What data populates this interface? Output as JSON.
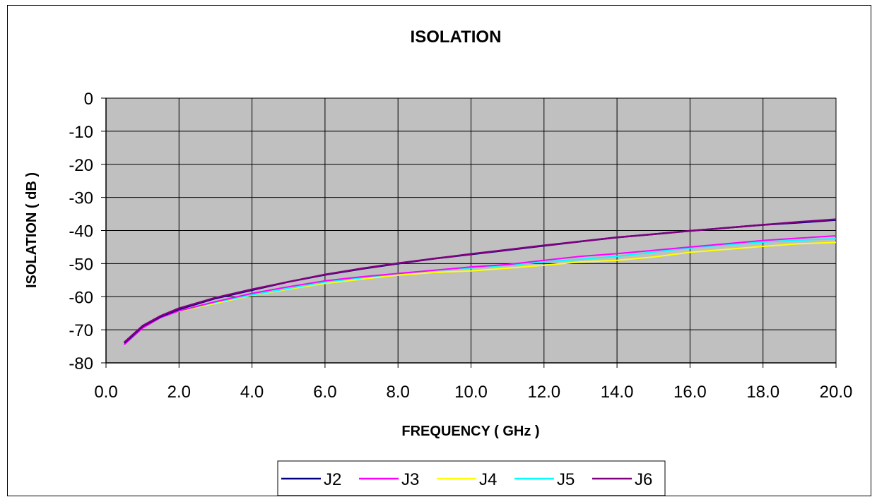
{
  "chart_data": {
    "type": "line",
    "title": "ISOLATION",
    "xlabel": "FREQUENCY ( GHz )",
    "ylabel": "ISOLATION ( dB )",
    "xlim": [
      0.0,
      20.0
    ],
    "ylim": [
      -80,
      0
    ],
    "x_ticks": [
      "0.0",
      "2.0",
      "4.0",
      "6.0",
      "8.0",
      "10.0",
      "12.0",
      "14.0",
      "16.0",
      "18.0",
      "20.0"
    ],
    "y_ticks": [
      "0",
      "-10",
      "-20",
      "-30",
      "-40",
      "-50",
      "-60",
      "-70",
      "-80"
    ],
    "grid": true,
    "plot_background": "#c0c0c0",
    "legend_position": "bottom",
    "x": [
      0.5,
      1.0,
      1.5,
      2.0,
      3.0,
      4.0,
      5.0,
      6.0,
      7.0,
      8.0,
      9.0,
      10.0,
      11.0,
      12.0,
      13.0,
      14.0,
      15.0,
      16.0,
      17.0,
      18.0,
      19.0,
      20.0
    ],
    "series": [
      {
        "name": "J2",
        "color": "#000080",
        "values": [
          -74.0,
          -69.0,
          -66.0,
          -63.8,
          -60.5,
          -58.0,
          -55.5,
          -53.4,
          -51.6,
          -50.0,
          -48.5,
          -47.2,
          -45.9,
          -44.6,
          -43.3,
          -42.1,
          -41.1,
          -40.1,
          -39.2,
          -38.3,
          -37.6,
          -36.8
        ]
      },
      {
        "name": "J3",
        "color": "#ff00ff",
        "values": [
          -74.5,
          -69.5,
          -66.3,
          -64.3,
          -61.5,
          -59.0,
          -57.0,
          -55.2,
          -54.0,
          -53.0,
          -52.0,
          -51.0,
          -50.3,
          -49.0,
          -47.8,
          -47.0,
          -46.0,
          -45.0,
          -44.0,
          -43.0,
          -42.3,
          -41.6
        ]
      },
      {
        "name": "J4",
        "color": "#ffff00",
        "values": [
          -74.3,
          -69.3,
          -66.2,
          -64.4,
          -62.0,
          -59.6,
          -57.7,
          -56.0,
          -54.7,
          -53.5,
          -52.7,
          -52.2,
          -51.4,
          -50.5,
          -49.5,
          -49.0,
          -48.0,
          -46.6,
          -45.7,
          -44.8,
          -44.0,
          -43.6
        ]
      },
      {
        "name": "J5",
        "color": "#00ffff",
        "values": [
          -74.3,
          -69.4,
          -66.3,
          -64.3,
          -61.7,
          -59.5,
          -57.5,
          -55.6,
          -54.3,
          -53.0,
          -52.0,
          -51.3,
          -50.5,
          -49.5,
          -48.7,
          -47.8,
          -46.5,
          -45.3,
          -44.3,
          -43.5,
          -42.9,
          -42.5
        ]
      },
      {
        "name": "J6",
        "color": "#800080",
        "values": [
          -73.8,
          -68.8,
          -65.8,
          -63.5,
          -60.3,
          -57.8,
          -55.5,
          -53.3,
          -51.5,
          -49.9,
          -48.5,
          -47.1,
          -45.8,
          -44.5,
          -43.3,
          -42.1,
          -41.1,
          -40.1,
          -39.2,
          -38.3,
          -37.4,
          -36.6
        ]
      }
    ]
  }
}
